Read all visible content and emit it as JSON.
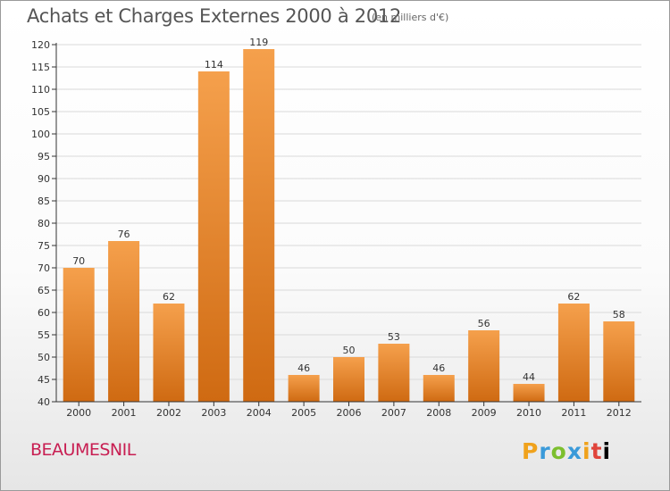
{
  "header": {
    "title": "Achats et Charges Externes 2000 à 2012",
    "subtitle": "(en milliers d'€)"
  },
  "footer": {
    "commune": "BEAUMESNIL",
    "logo_letters": [
      "P",
      "r",
      "o",
      "x",
      "i",
      "t",
      "i"
    ]
  },
  "chart_data": {
    "type": "bar",
    "title": "Achats et Charges Externes 2000 à 2012",
    "subtitle": "(en milliers d'€)",
    "categories": [
      "2000",
      "2001",
      "2002",
      "2003",
      "2004",
      "2005",
      "2006",
      "2007",
      "2008",
      "2009",
      "2010",
      "2011",
      "2012"
    ],
    "values": [
      70,
      76,
      62,
      114,
      119,
      46,
      50,
      53,
      46,
      56,
      44,
      62,
      58
    ],
    "ylim": [
      40,
      120
    ],
    "yticks": [
      40,
      45,
      50,
      55,
      60,
      65,
      70,
      75,
      80,
      85,
      90,
      95,
      100,
      105,
      110,
      115,
      120
    ],
    "xlabel": "",
    "ylabel": "",
    "grid": true,
    "colors": {
      "bar_top": "#f5a04c",
      "bar_bottom": "#cf6a12",
      "grid": "#d9d9d9",
      "axis": "#333333",
      "text": "#333333"
    }
  }
}
